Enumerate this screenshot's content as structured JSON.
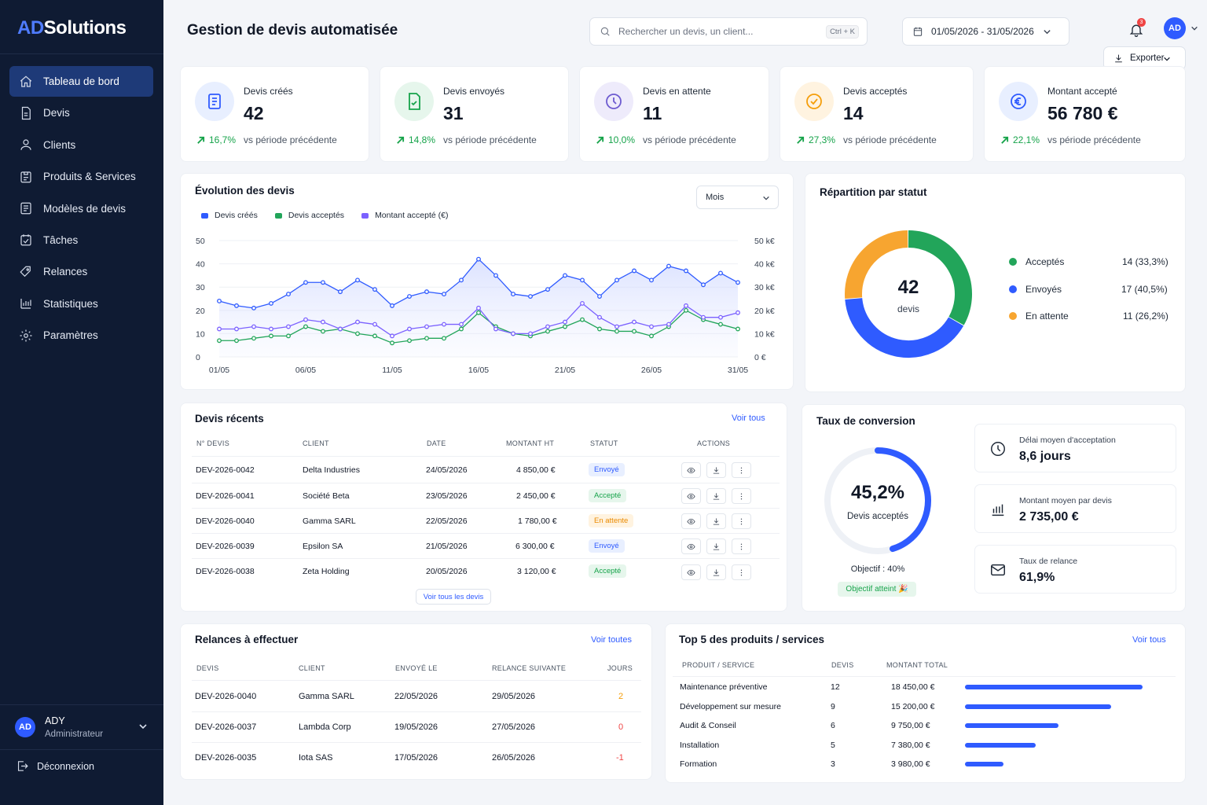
{
  "app": {
    "logo_ad": "AD",
    "logo_rest": "Solutions"
  },
  "sidebar": {
    "items": [
      {
        "label": "Tableau de bord",
        "icon": "home-icon",
        "active": true
      },
      {
        "label": "Devis",
        "icon": "document-icon"
      },
      {
        "label": "Clients",
        "icon": "user-icon"
      },
      {
        "label": "Produits & Services",
        "icon": "box-icon"
      },
      {
        "label": "Modèles de devis",
        "icon": "template-icon"
      },
      {
        "label": "Tâches",
        "icon": "calendar-check-icon"
      },
      {
        "label": "Relances",
        "icon": "tag-icon"
      },
      {
        "label": "Statistiques",
        "icon": "bar-chart-icon"
      },
      {
        "label": "Paramètres",
        "icon": "gear-icon"
      }
    ],
    "user": {
      "initials": "AD",
      "name": "ADY",
      "role": "Administrateur"
    },
    "logout": "Déconnexion"
  },
  "header": {
    "title": "Gestion de devis automatisée",
    "search_placeholder": "Rechercher un devis, un client...",
    "search_shortcut": "Ctrl + K",
    "date_range": "01/05/2026 - 31/05/2026",
    "notification_count": "3",
    "user_initials": "AD",
    "export_label": "Exporter"
  },
  "kpis": [
    {
      "label": "Devis créés",
      "value": "42",
      "trend": "16,7%",
      "vs": "vs période précédente",
      "icon": "document-list-icon",
      "color": "#2f5bff",
      "bg": "#e8efff"
    },
    {
      "label": "Devis envoyés",
      "value": "31",
      "trend": "14,8%",
      "vs": "vs période précédente",
      "icon": "document-check-icon",
      "color": "#16a34a",
      "bg": "#e6f6ec"
    },
    {
      "label": "Devis en attente",
      "value": "11",
      "trend": "10,0%",
      "vs": "vs période précédente",
      "icon": "clock-icon",
      "color": "#6d5bd0",
      "bg": "#eeebfb"
    },
    {
      "label": "Devis acceptés",
      "value": "14",
      "trend": "27,3%",
      "vs": "vs période précédente",
      "icon": "check-circle-icon",
      "color": "#f59e0b",
      "bg": "#fff3e0"
    },
    {
      "label": "Montant accepté",
      "value": "56 780 €",
      "trend": "22,1%",
      "vs": "vs période précédente",
      "icon": "euro-icon",
      "color": "#2f5bff",
      "bg": "#e8efff"
    }
  ],
  "evolution": {
    "title": "Évolution des devis",
    "period_select": "Mois",
    "legend": [
      "Devis créés",
      "Devis acceptés",
      "Montant accepté (€)"
    ],
    "left_ticks": [
      "50",
      "40",
      "30",
      "20",
      "10",
      "0"
    ],
    "right_ticks": [
      "50 k€",
      "40 k€",
      "30 k€",
      "20 k€",
      "10 k€",
      "0 €"
    ],
    "x_ticks": [
      "01/05",
      "06/05",
      "11/05",
      "16/05",
      "21/05",
      "26/05",
      "31/05"
    ]
  },
  "chart_data": [
    {
      "type": "line",
      "title": "Évolution des devis",
      "x": [
        "01/05",
        "02/05",
        "03/05",
        "04/05",
        "05/05",
        "06/05",
        "07/05",
        "08/05",
        "09/05",
        "10/05",
        "11/05",
        "12/05",
        "13/05",
        "14/05",
        "15/05",
        "16/05",
        "17/05",
        "18/05",
        "19/05",
        "20/05",
        "21/05",
        "22/05",
        "23/05",
        "24/05",
        "25/05",
        "26/05",
        "27/05",
        "28/05",
        "29/05",
        "30/05",
        "31/05"
      ],
      "ylim": [
        0,
        50
      ],
      "y2lim": [
        0,
        50000
      ],
      "series": [
        {
          "name": "Devis créés",
          "color": "#2f5bff",
          "values": [
            24,
            22,
            21,
            23,
            27,
            32,
            32,
            28,
            33,
            29,
            22,
            26,
            28,
            27,
            33,
            42,
            35,
            27,
            26,
            29,
            35,
            33,
            26,
            33,
            37,
            33,
            39,
            37,
            31,
            36,
            32
          ]
        },
        {
          "name": "Devis acceptés",
          "color": "#22a55a",
          "values": [
            7,
            7,
            8,
            9,
            9,
            13,
            11,
            12,
            10,
            9,
            6,
            7,
            8,
            8,
            12,
            19,
            13,
            10,
            9,
            11,
            13,
            16,
            12,
            11,
            11,
            9,
            13,
            20,
            16,
            14,
            12
          ]
        },
        {
          "name": "Montant accepté (€)",
          "color": "#7b61ff",
          "values": [
            12000,
            12000,
            13000,
            12000,
            13000,
            16000,
            15000,
            12000,
            15000,
            14000,
            9000,
            12000,
            13000,
            14000,
            14000,
            21000,
            12000,
            10000,
            10000,
            13000,
            15000,
            23000,
            17000,
            13000,
            15000,
            13000,
            14000,
            22000,
            17000,
            17000,
            19000
          ]
        }
      ]
    },
    {
      "type": "pie",
      "title": "Répartition par statut",
      "labels": [
        "Acceptés",
        "Envoyés",
        "En attente"
      ],
      "values": [
        14,
        17,
        11
      ],
      "colors": [
        "#22a55a",
        "#2f5bff",
        "#f7a530"
      ]
    },
    {
      "type": "bar",
      "title": "Top 5 des produits / services",
      "categories": [
        "Maintenance préventive",
        "Développement sur mesure",
        "Audit & Conseil",
        "Installation",
        "Formation"
      ],
      "values": [
        18450,
        15200,
        9750,
        7380,
        3980
      ]
    }
  ],
  "repartition": {
    "title": "Répartition par statut",
    "center_value": "42",
    "center_label": "devis",
    "items": [
      {
        "label": "Acceptés",
        "value": "14 (33,3%)",
        "color": "#22a55a"
      },
      {
        "label": "Envoyés",
        "value": "17 (40,5%)",
        "color": "#2f5bff"
      },
      {
        "label": "En attente",
        "value": "11 (26,2%)",
        "color": "#f7a530"
      }
    ]
  },
  "recent": {
    "title": "Devis récents",
    "link": "Voir tous",
    "columns": [
      "N° DEVIS",
      "CLIENT",
      "DATE",
      "MONTANT HT",
      "STATUT",
      "ACTIONS"
    ],
    "rows": [
      {
        "id": "DEV-2026-0042",
        "client": "Delta Industries",
        "date": "24/05/2026",
        "amount": "4 850,00 €",
        "status": "Envoyé",
        "kind": "blue"
      },
      {
        "id": "DEV-2026-0041",
        "client": "Société Beta",
        "date": "23/05/2026",
        "amount": "2 450,00 €",
        "status": "Accepté",
        "kind": "green"
      },
      {
        "id": "DEV-2026-0040",
        "client": "Gamma SARL",
        "date": "22/05/2026",
        "amount": "1 780,00 €",
        "status": "En attente",
        "kind": "orange"
      },
      {
        "id": "DEV-2026-0039",
        "client": "Epsilon SA",
        "date": "21/05/2026",
        "amount": "6 300,00 €",
        "status": "Envoyé",
        "kind": "blue"
      },
      {
        "id": "DEV-2026-0038",
        "client": "Zeta Holding",
        "date": "20/05/2026",
        "amount": "3 120,00 €",
        "status": "Accepté",
        "kind": "green"
      }
    ],
    "see_all": "Voir tous les devis"
  },
  "conversion": {
    "title": "Taux de conversion",
    "value": "45,2%",
    "value_fraction": 0.452,
    "label": "Devis acceptés",
    "goal": "Objectif : 40%",
    "goal_badge": "Objectif atteint 🎉",
    "stats": [
      {
        "label": "Délai moyen d'acceptation",
        "value": "8,6 jours",
        "icon": "clock-icon"
      },
      {
        "label": "Montant moyen par devis",
        "value": "2 735,00 €",
        "icon": "bar-chart-icon"
      },
      {
        "label": "Taux de relance",
        "value": "61,9%",
        "icon": "mail-icon"
      }
    ]
  },
  "relances": {
    "title": "Relances à effectuer",
    "link": "Voir toutes",
    "columns": [
      "DEVIS",
      "CLIENT",
      "ENVOYÉ LE",
      "RELANCE SUIVANTE",
      "JOURS"
    ],
    "rows": [
      {
        "id": "DEV-2026-0040",
        "client": "Gamma SARL",
        "sent": "22/05/2026",
        "next": "29/05/2026",
        "days": "2",
        "color": "#f59e0b"
      },
      {
        "id": "DEV-2026-0037",
        "client": "Lambda Corp",
        "sent": "19/05/2026",
        "next": "27/05/2026",
        "days": "0",
        "color": "#ef4444"
      },
      {
        "id": "DEV-2026-0035",
        "client": "Iota SAS",
        "sent": "17/05/2026",
        "next": "26/05/2026",
        "days": "-1",
        "color": "#ef4444"
      }
    ]
  },
  "top5": {
    "title": "Top 5 des produits / services",
    "link": "Voir tous",
    "columns": [
      "PRODUIT / SERVICE",
      "DEVIS",
      "MONTANT TOTAL"
    ],
    "rows": [
      {
        "name": "Maintenance préventive",
        "count": "12",
        "amount": "18 450,00 €"
      },
      {
        "name": "Développement sur mesure",
        "count": "9",
        "amount": "15 200,00 €"
      },
      {
        "name": "Audit & Conseil",
        "count": "6",
        "amount": "9 750,00 €"
      },
      {
        "name": "Installation",
        "count": "5",
        "amount": "7 380,00 €"
      },
      {
        "name": "Formation",
        "count": "3",
        "amount": "3 980,00 €"
      }
    ]
  }
}
